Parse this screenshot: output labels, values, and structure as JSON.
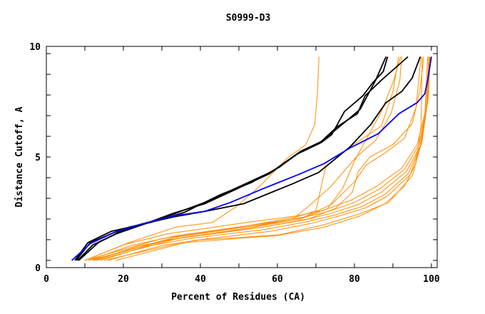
{
  "chart_data": {
    "type": "line",
    "title": "S0999-D3",
    "xlabel": "Percent of Residues (CA)",
    "ylabel": "Distance Cutoff, A",
    "xlim": [
      0,
      101.5
    ],
    "ylim": [
      -0.35,
      10.35
    ],
    "xticks": [
      0,
      20,
      40,
      60,
      80,
      100
    ],
    "yticks": [
      0,
      5,
      10
    ],
    "xminor_step": 10,
    "yminor_step": 1,
    "grid": false,
    "colors": {
      "orange": "#ff8c00",
      "blue": "#0000ff",
      "black": "#000000"
    },
    "series": [
      {
        "name": "orange-outlier",
        "color": "orange",
        "points": [
          [
            10.1,
            0
          ],
          [
            21.5,
            0.86
          ],
          [
            33.7,
            1.61
          ],
          [
            43.1,
            1.83
          ],
          [
            49.2,
            2.58
          ],
          [
            55.2,
            3.55
          ],
          [
            62.6,
            4.95
          ],
          [
            67.3,
            5.59
          ],
          [
            69.7,
            6.56
          ],
          [
            70.4,
            8.17
          ],
          [
            70.8,
            9.85
          ]
        ]
      },
      {
        "name": "orange-a",
        "color": "orange",
        "points": [
          [
            10,
            0
          ],
          [
            20,
            0.75
          ],
          [
            31.6,
            1.29
          ],
          [
            52,
            1.83
          ],
          [
            65,
            2.15
          ],
          [
            72,
            2.42
          ],
          [
            79,
            2.9
          ],
          [
            85.5,
            3.55
          ],
          [
            92.3,
            4.46
          ],
          [
            96.3,
            5.6
          ],
          [
            98.3,
            7.1
          ],
          [
            99,
            9.85
          ]
        ]
      },
      {
        "name": "orange-b",
        "color": "orange",
        "points": [
          [
            11,
            0
          ],
          [
            22,
            0.72
          ],
          [
            34,
            1.2
          ],
          [
            54,
            1.72
          ],
          [
            66,
            2.05
          ],
          [
            73,
            2.35
          ],
          [
            80,
            2.8
          ],
          [
            86.5,
            3.45
          ],
          [
            93,
            4.4
          ],
          [
            96.8,
            5.6
          ],
          [
            98.6,
            7.3
          ],
          [
            99.3,
            9.85
          ]
        ]
      },
      {
        "name": "orange-c",
        "color": "orange",
        "points": [
          [
            12.5,
            0
          ],
          [
            24,
            0.7
          ],
          [
            36,
            1.12
          ],
          [
            56,
            1.6
          ],
          [
            67,
            1.95
          ],
          [
            74,
            2.28
          ],
          [
            81,
            2.7
          ],
          [
            87,
            3.3
          ],
          [
            93.5,
            4.3
          ],
          [
            97,
            5.5
          ],
          [
            98.8,
            7.5
          ],
          [
            99.5,
            9.85
          ]
        ]
      },
      {
        "name": "orange-d",
        "color": "orange",
        "points": [
          [
            14,
            0
          ],
          [
            26,
            0.68
          ],
          [
            38,
            1.08
          ],
          [
            57,
            1.5
          ],
          [
            68,
            1.88
          ],
          [
            75,
            2.2
          ],
          [
            82,
            2.6
          ],
          [
            88,
            3.2
          ],
          [
            94,
            4.2
          ],
          [
            97.3,
            5.6
          ],
          [
            99,
            7.7
          ],
          [
            99.6,
            9.85
          ]
        ]
      },
      {
        "name": "orange-e",
        "color": "orange",
        "points": [
          [
            16,
            0
          ],
          [
            30,
            0.72
          ],
          [
            42,
            1.05
          ],
          [
            58,
            1.4
          ],
          [
            69,
            1.8
          ],
          [
            76,
            2.15
          ],
          [
            83,
            2.55
          ],
          [
            88.5,
            3.1
          ],
          [
            94.5,
            4.15
          ],
          [
            97.5,
            5.7
          ],
          [
            99.2,
            7.9
          ],
          [
            99.7,
            9.85
          ]
        ]
      },
      {
        "name": "orange-f",
        "color": "orange",
        "points": [
          [
            18,
            0
          ],
          [
            38.4,
            0.97
          ],
          [
            60.6,
            1.24
          ],
          [
            72,
            1.72
          ],
          [
            81.5,
            2.26
          ],
          [
            88.9,
            2.8
          ],
          [
            95,
            4.09
          ],
          [
            97.6,
            5.8
          ],
          [
            99,
            7.96
          ],
          [
            99.7,
            9.85
          ]
        ]
      },
      {
        "name": "orange-g",
        "color": "orange",
        "points": [
          [
            15,
            0
          ],
          [
            35,
            0.85
          ],
          [
            60,
            1.2
          ],
          [
            72,
            1.6
          ],
          [
            81.5,
            2.15
          ],
          [
            88,
            2.75
          ],
          [
            93,
            3.6
          ],
          [
            96,
            4.7
          ],
          [
            97.3,
            6.5
          ],
          [
            97.6,
            9.85
          ]
        ]
      },
      {
        "name": "orange-h",
        "color": "orange",
        "points": [
          [
            10,
            0
          ],
          [
            30,
            1.05
          ],
          [
            50,
            1.6
          ],
          [
            65,
            2.1
          ],
          [
            70,
            2.4
          ],
          [
            72.5,
            4.5
          ],
          [
            79,
            5.5
          ],
          [
            87,
            6.5
          ],
          [
            90,
            8.17
          ],
          [
            91.5,
            9.85
          ]
        ]
      },
      {
        "name": "orange-i",
        "color": "orange",
        "points": [
          [
            11,
            0
          ],
          [
            32,
            1.0
          ],
          [
            52,
            1.55
          ],
          [
            64,
            2.0
          ],
          [
            68,
            2.6
          ],
          [
            73.5,
            3.5
          ],
          [
            80.5,
            5.0
          ],
          [
            85.5,
            5.8
          ],
          [
            89.5,
            7.1
          ],
          [
            91.8,
            8.7
          ],
          [
            92.3,
            9.85
          ]
        ]
      },
      {
        "name": "orange-j",
        "color": "orange",
        "points": [
          [
            12,
            0
          ],
          [
            33,
            1.1
          ],
          [
            55,
            1.7
          ],
          [
            67,
            2.1
          ],
          [
            74,
            2.7
          ],
          [
            80,
            3.8
          ],
          [
            83,
            4.6
          ],
          [
            88,
            5.2
          ],
          [
            93,
            5.9
          ],
          [
            96,
            7.4
          ],
          [
            97.3,
            9.85
          ]
        ]
      },
      {
        "name": "orange-k",
        "color": "orange",
        "points": [
          [
            13,
            0
          ],
          [
            34,
            1.05
          ],
          [
            56,
            1.6
          ],
          [
            68,
            2.0
          ],
          [
            75,
            2.5
          ],
          [
            79.5,
            3.3
          ],
          [
            81,
            4.3
          ],
          [
            84,
            5.0
          ],
          [
            90,
            5.6
          ],
          [
            95,
            6.6
          ],
          [
            97,
            8.2
          ],
          [
            98,
            9.85
          ]
        ]
      },
      {
        "name": "orange-l",
        "color": "orange",
        "points": [
          [
            12,
            0
          ],
          [
            30,
            0.95
          ],
          [
            52,
            1.55
          ],
          [
            66,
            2.0
          ],
          [
            73,
            2.5
          ],
          [
            77,
            3.5
          ],
          [
            80,
            4.8
          ],
          [
            83.5,
            6.0
          ],
          [
            87,
            7.2
          ],
          [
            90,
            8.6
          ],
          [
            92,
            9.85
          ]
        ]
      },
      {
        "name": "black-1",
        "color": "black",
        "points": [
          [
            7.7,
            0
          ],
          [
            11.4,
            0.86
          ],
          [
            17.5,
            1.34
          ],
          [
            24.9,
            1.72
          ],
          [
            33,
            2.28
          ],
          [
            41.1,
            2.74
          ],
          [
            50.5,
            3.55
          ],
          [
            57.9,
            4.19
          ],
          [
            65.3,
            5.16
          ],
          [
            71.4,
            5.7
          ],
          [
            74.1,
            6.08
          ],
          [
            77.4,
            7.2
          ],
          [
            82.2,
            7.96
          ],
          [
            84.8,
            8.6
          ],
          [
            87.5,
            9.14
          ],
          [
            88.6,
            9.85
          ]
        ]
      },
      {
        "name": "black-2",
        "color": "black",
        "points": [
          [
            8.1,
            0
          ],
          [
            12.1,
            0.75
          ],
          [
            18.2,
            1.29
          ],
          [
            25.6,
            1.77
          ],
          [
            33,
            2.24
          ],
          [
            41.1,
            2.8
          ],
          [
            51.2,
            3.66
          ],
          [
            58.6,
            4.3
          ],
          [
            66,
            5.27
          ],
          [
            71.4,
            5.75
          ],
          [
            75.4,
            6.45
          ],
          [
            80.8,
            7.1
          ],
          [
            82.8,
            7.96
          ],
          [
            86.9,
            8.7
          ],
          [
            93.9,
            9.85
          ]
        ]
      },
      {
        "name": "black-3",
        "color": "black",
        "points": [
          [
            8.4,
            0
          ],
          [
            13.5,
            0.86
          ],
          [
            21.5,
            1.61
          ],
          [
            33,
            2.1
          ],
          [
            41.1,
            2.37
          ],
          [
            51.2,
            2.74
          ],
          [
            64,
            3.71
          ],
          [
            70.7,
            4.25
          ],
          [
            78.8,
            5.48
          ],
          [
            84.2,
            6.56
          ],
          [
            88.2,
            7.63
          ],
          [
            92.3,
            8.17
          ],
          [
            95,
            8.82
          ],
          [
            97.1,
            9.85
          ]
        ]
      },
      {
        "name": "black-4",
        "color": "black",
        "points": [
          [
            7.4,
            0
          ],
          [
            10.8,
            0.86
          ],
          [
            16.8,
            1.4
          ],
          [
            27,
            1.83
          ],
          [
            35.7,
            2.31
          ],
          [
            45.1,
            3.17
          ],
          [
            53.2,
            3.76
          ],
          [
            60.6,
            4.52
          ],
          [
            66,
            5.27
          ],
          [
            70.7,
            5.64
          ],
          [
            78.8,
            6.88
          ],
          [
            81.5,
            7.31
          ],
          [
            85.5,
            8.71
          ],
          [
            88.2,
            9.85
          ]
        ]
      },
      {
        "name": "blue-target",
        "color": "blue",
        "points": [
          [
            6.6,
            0
          ],
          [
            11.4,
            0.81
          ],
          [
            18.2,
            1.4
          ],
          [
            24.9,
            1.77
          ],
          [
            33,
            2.15
          ],
          [
            41.1,
            2.37
          ],
          [
            47.8,
            2.8
          ],
          [
            55.9,
            3.44
          ],
          [
            65.3,
            4.14
          ],
          [
            72.1,
            4.68
          ],
          [
            78.8,
            5.43
          ],
          [
            86.2,
            6.13
          ],
          [
            91.6,
            7.1
          ],
          [
            96.3,
            7.63
          ],
          [
            98.3,
            8.06
          ],
          [
            99,
            8.7
          ],
          [
            100,
            9.85
          ]
        ]
      }
    ]
  }
}
